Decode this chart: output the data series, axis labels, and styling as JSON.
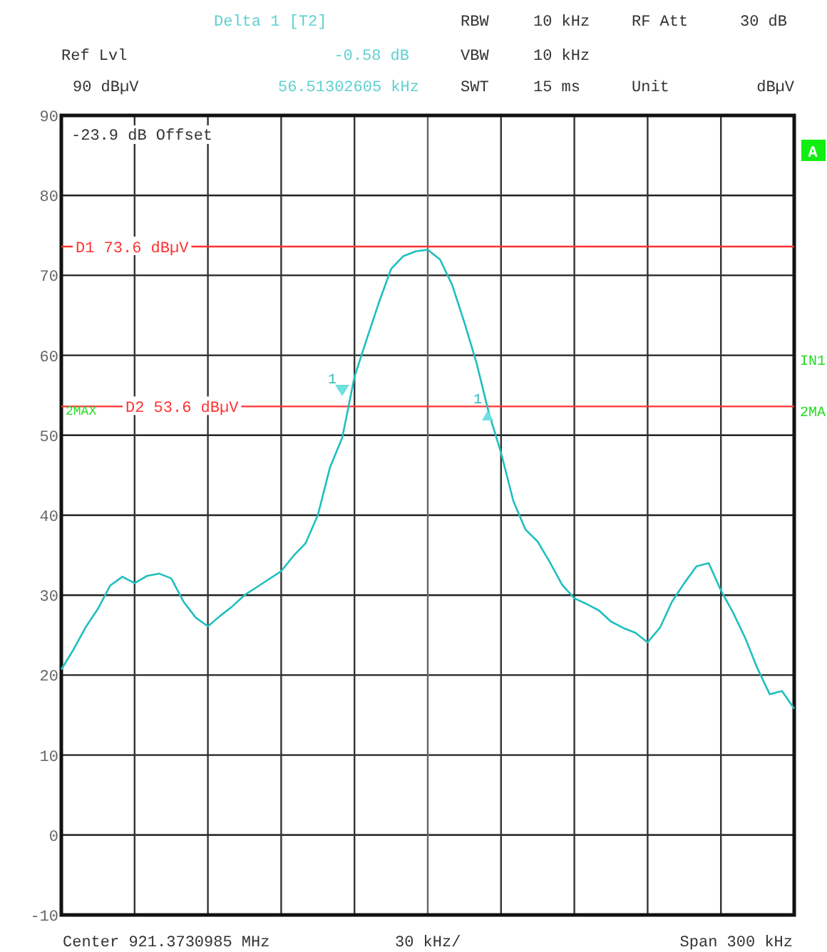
{
  "chart_data": {
    "type": "line",
    "categories": [
      null,
      null,
      null,
      null,
      null,
      null,
      null,
      null,
      null,
      null,
      null,
      null,
      null,
      null,
      null,
      null,
      null,
      null,
      null,
      null,
      null,
      null,
      null,
      null,
      null,
      null,
      null,
      null,
      null,
      null,
      null,
      null,
      null,
      null,
      null,
      null,
      null,
      null,
      null,
      null,
      null,
      null,
      null,
      null,
      null,
      null,
      null,
      null,
      null,
      null,
      null,
      null,
      null,
      null,
      null,
      null,
      null,
      null,
      null,
      null,
      null
    ],
    "series": [
      {
        "color": "#1fbfbf",
        "values": [
          20.7,
          23.2,
          26,
          28.3,
          31.2,
          32.3,
          31.5,
          32.4,
          32.7,
          32.1,
          29.2,
          27.2,
          26.1,
          27.4,
          28.6,
          30,
          31,
          32,
          33,
          34.9,
          36.5,
          40,
          46,
          49.7,
          57.3,
          62,
          66.6,
          70.8,
          72.4,
          73,
          73.2,
          72,
          68.8,
          64.1,
          59,
          52.8,
          47.8,
          41.8,
          38.2,
          36.7,
          34.1,
          31.3,
          29.6,
          28.9,
          28.1,
          26.7,
          25.9,
          25.3,
          24.1,
          25.9,
          29.2,
          31.5,
          33.6,
          34,
          30.6,
          27.8,
          24.6,
          20.8,
          17.6,
          18,
          15.8
        ]
      }
    ],
    "ylim": [
      -10,
      90
    ],
    "yticks": [
      -10,
      0,
      10,
      20,
      30,
      40,
      50,
      60,
      70,
      80,
      90
    ],
    "grid": true,
    "marker": "none",
    "line_style": "solid",
    "ref_lines": [
      {
        "axis": "y",
        "value": 73.6,
        "label": "D1 73.6 dBµV",
        "color": "#ff3333"
      },
      {
        "axis": "y",
        "value": 53.6,
        "label": "D2 53.6 dBµV",
        "color": "#ff3333"
      }
    ],
    "annotations": [
      "Delta 1 [T2]",
      "-0.58 dB",
      "56.51302605 kHz",
      "Ref Lvl",
      "90 dBµV",
      "RBW",
      "10 kHz",
      "RF Att",
      "30 dB",
      "VBW",
      "10 kHz",
      "SWT",
      "15 ms",
      "Unit",
      "dBµV",
      "-23.9 dB Offset",
      "A",
      "IN1",
      "2MA",
      "2MAX",
      "Center 921.3730985 MHz",
      "30 kHz/",
      "Span 300 kHz",
      "1",
      "1"
    ]
  }
}
